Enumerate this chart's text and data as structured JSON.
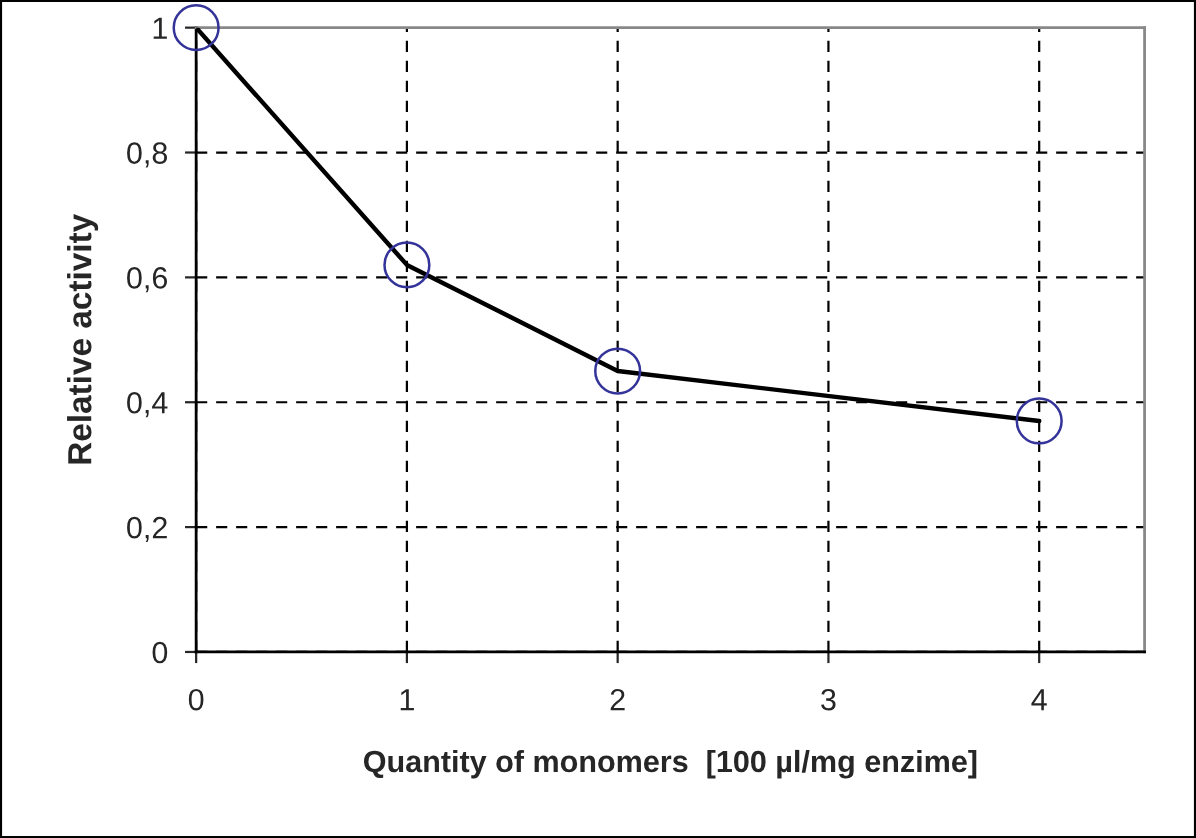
{
  "chart_data": {
    "type": "line",
    "xlabel": "Quantity of monomers  [100 µl/mg enzime]",
    "ylabel": "Relative activity",
    "x": [
      0,
      1,
      2,
      4
    ],
    "series": [
      {
        "color": "#000000",
        "marker": "none",
        "values": [
          1,
          0.62,
          0.45,
          0.37
        ]
      },
      {
        "type": "scatter",
        "color": "#333399",
        "marker": "circle",
        "values": [
          1,
          0.62,
          0.45,
          0.37
        ]
      }
    ],
    "xlim": [
      0,
      4.5
    ],
    "xticks": [
      0,
      1,
      2,
      3,
      4
    ],
    "ylim": [
      0,
      1
    ],
    "yticks": [
      0,
      {
        "value": 0.2,
        "label": "0,2"
      },
      {
        "value": 0.4,
        "label": "0,4"
      },
      {
        "value": 0.6,
        "label": "0,6"
      },
      {
        "value": 0.8,
        "label": "0,8"
      },
      1
    ],
    "grid": true,
    "line_style": "solid"
  }
}
